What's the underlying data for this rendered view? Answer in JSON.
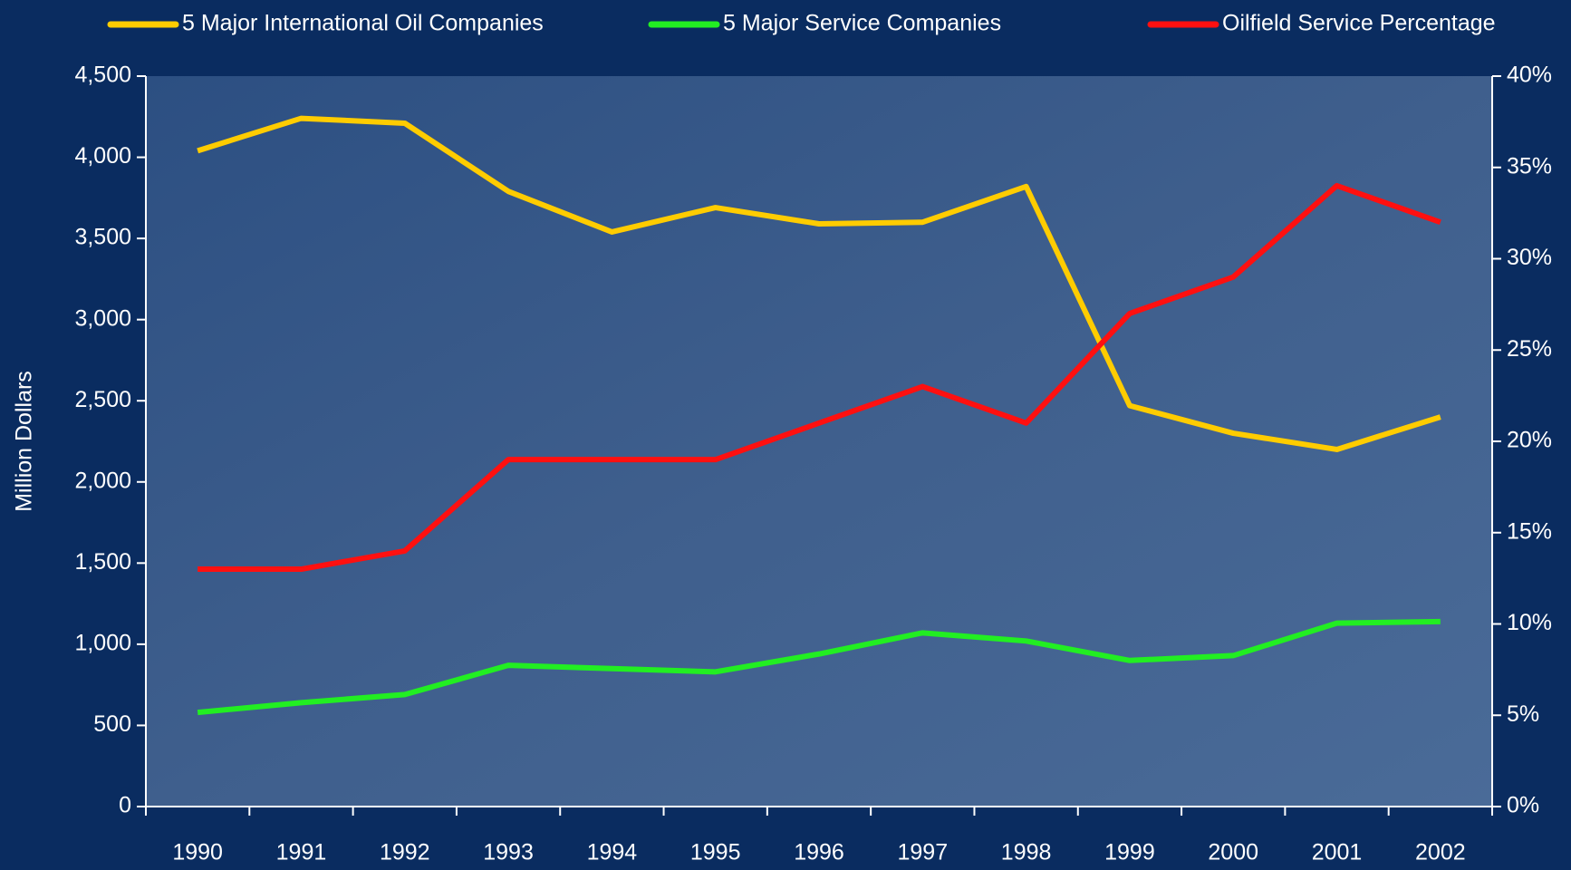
{
  "chart_data": {
    "type": "line",
    "y_label": "Million Dollars",
    "categories": [
      "1990",
      "1991",
      "1992",
      "1993",
      "1994",
      "1995",
      "1996",
      "1997",
      "1998",
      "1999",
      "2000",
      "2001",
      "2002"
    ],
    "series": [
      {
        "name": "5 Major International Oil Companies",
        "color": "#ffcc00",
        "values": [
          4040,
          4240,
          4210,
          3790,
          3540,
          3690,
          3590,
          3600,
          3820,
          2470,
          2300,
          2200,
          2400
        ]
      },
      {
        "name": "5 Major Service Companies",
        "color": "#22ee22",
        "values": [
          580,
          640,
          690,
          870,
          850,
          830,
          940,
          1070,
          1020,
          900,
          930,
          1130,
          1140
        ]
      },
      {
        "name": "Oilfield Service Percentage",
        "color": "#ff1010",
        "axis": "y2",
        "values": [
          13,
          13,
          14,
          19,
          19,
          19,
          21,
          23,
          21,
          27,
          29,
          34,
          32
        ]
      }
    ],
    "ylim": [
      0,
      4500
    ],
    "yticks": [
      0,
      500,
      {
        "value": 1000,
        "label": "1,000"
      },
      {
        "value": 1500,
        "label": "1,500"
      },
      {
        "value": 2000,
        "label": "2,000"
      },
      {
        "value": 2500,
        "label": "2,500"
      },
      {
        "value": 3000,
        "label": "3,000"
      },
      {
        "value": 3500,
        "label": "3,500"
      },
      {
        "value": 4000,
        "label": "4,000"
      },
      {
        "value": 4500,
        "label": "4,500"
      }
    ],
    "y2lim": [
      0,
      40
    ],
    "y2ticks": [
      {
        "value": 0,
        "label": "0%"
      },
      {
        "value": 5,
        "label": "5%"
      },
      {
        "value": 10,
        "label": "10%"
      },
      {
        "value": 15,
        "label": "15%"
      },
      {
        "value": 20,
        "label": "20%"
      },
      {
        "value": 25,
        "label": "25%"
      },
      {
        "value": 30,
        "label": "30%"
      },
      {
        "value": 35,
        "label": "35%"
      },
      {
        "value": 40,
        "label": "40%"
      }
    ],
    "legend": "top"
  }
}
